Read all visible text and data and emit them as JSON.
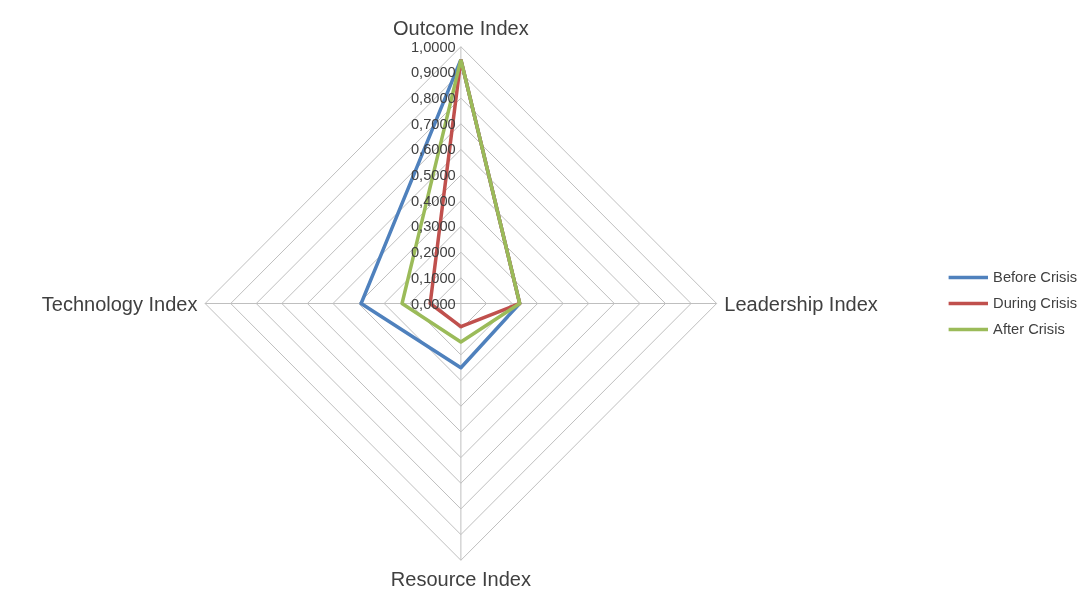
{
  "chart_data": {
    "type": "radar",
    "categories": [
      "Outcome Index",
      "Leadership Index",
      "Resource Index",
      "Technology Index"
    ],
    "series": [
      {
        "name": "Before Crisis",
        "color": "#4f81bd",
        "values": [
          0.95,
          0.23,
          0.25,
          0.39
        ]
      },
      {
        "name": "During Crisis",
        "color": "#c0504d",
        "values": [
          0.95,
          0.23,
          0.09,
          0.12
        ]
      },
      {
        "name": "After Crisis",
        "color": "#9bbb59",
        "values": [
          0.95,
          0.23,
          0.15,
          0.23
        ]
      }
    ],
    "ylim": [
      0,
      1
    ],
    "yticks": [
      {
        "value": 0,
        "label": "0,0000"
      },
      {
        "value": 0.1,
        "label": "0,1000"
      },
      {
        "value": 0.2,
        "label": "0,2000"
      },
      {
        "value": 0.3,
        "label": "0,3000"
      },
      {
        "value": 0.4,
        "label": "0,4000"
      },
      {
        "value": 0.5,
        "label": "0,5000"
      },
      {
        "value": 0.6,
        "label": "0,6000"
      },
      {
        "value": 0.7,
        "label": "0,7000"
      },
      {
        "value": 0.8,
        "label": "0,8000"
      },
      {
        "value": 0.9,
        "label": "0,9000"
      },
      {
        "value": 1,
        "label": "1,0000"
      }
    ],
    "grid": true,
    "legend": "right",
    "marker": "none",
    "line_style": "solid"
  }
}
